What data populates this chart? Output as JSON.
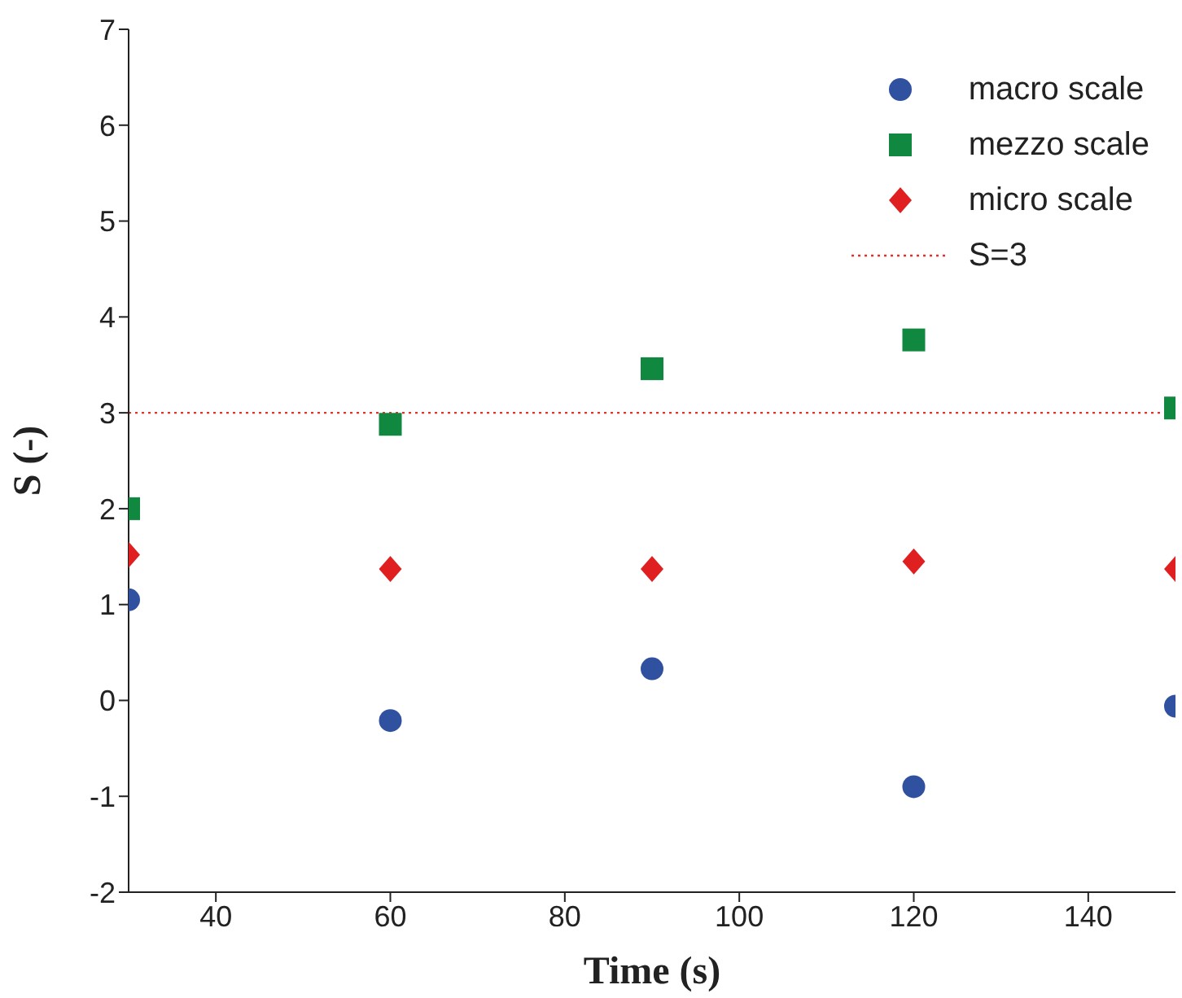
{
  "chart_data": {
    "type": "scatter",
    "xlabel": "Time (s)",
    "ylabel": "S (-)",
    "x": [
      30,
      60,
      90,
      120,
      150
    ],
    "series": [
      {
        "name": "macro scale",
        "color": "#3050a0",
        "marker": "circle",
        "values": [
          1.05,
          -0.21,
          0.33,
          -0.9,
          -0.06
        ]
      },
      {
        "name": "mezzo scale",
        "color": "#118840",
        "marker": "square",
        "values": [
          2.0,
          2.88,
          3.46,
          3.76,
          3.05
        ]
      },
      {
        "name": "micro scale",
        "color": "#e02020",
        "marker": "diamond",
        "values": [
          1.52,
          1.37,
          1.37,
          1.45,
          1.37
        ]
      }
    ],
    "ref_lines": [
      {
        "axis": "y",
        "value": 3,
        "label": "S=3",
        "color": "#e03030",
        "line_style": "dotted"
      }
    ],
    "xlim": [
      30,
      150
    ],
    "xticks": [
      40,
      60,
      80,
      100,
      120,
      140
    ],
    "ylim": [
      -2,
      7
    ],
    "yticks": [
      -2,
      -1,
      0,
      1,
      2,
      3,
      4,
      5,
      6,
      7
    ],
    "grid": false,
    "legend": "top right"
  }
}
